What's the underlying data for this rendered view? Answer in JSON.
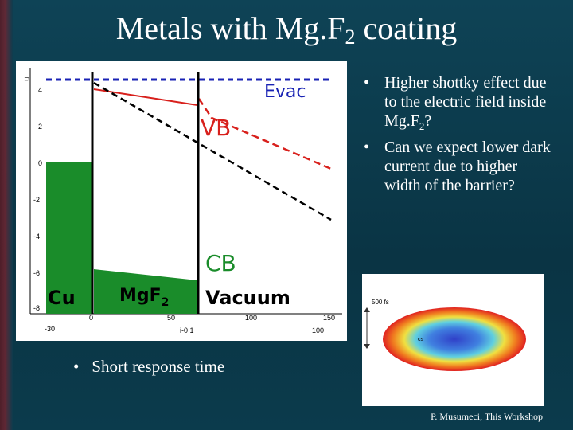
{
  "slide": {
    "title_main": "Metals with Mg.F",
    "title_sub": "2",
    "title_rest": " coating"
  },
  "bullets": [
    {
      "text_a": "Higher shottky effect due to the electric field inside Mg.F",
      "sub": "2",
      "text_b": "?"
    },
    {
      "text_a": "Can we expect lower dark current due to higher width of the barrier?",
      "sub": "",
      "text_b": ""
    }
  ],
  "bottom_bullet": "Short response time",
  "bullet_marker": "•",
  "plot": {
    "labels": {
      "evac": "Evac",
      "vb": "VB",
      "cb": "CB",
      "cu": "Cu",
      "mgf2_main": "MgF",
      "mgf2_sub": "2",
      "vacuum": "Vacuum"
    },
    "y_ticks": [
      "4",
      "2",
      "0",
      "-2",
      "-4",
      "-6",
      "-8"
    ],
    "x_ticks": [
      "-30",
      "0",
      "50",
      "100",
      "150"
    ],
    "x_mid_label": "i-0 1",
    "x_right_label": "100",
    "top_left_mark": "⊃",
    "colors": {
      "red": "#d8201c",
      "blue": "#1822b4",
      "green": "#1a8c2a",
      "black": "#000000"
    }
  },
  "inset": {
    "time_label": "500 fs",
    "center_label": "cs"
  },
  "footer": "P. Musumeci, This Workshop"
}
